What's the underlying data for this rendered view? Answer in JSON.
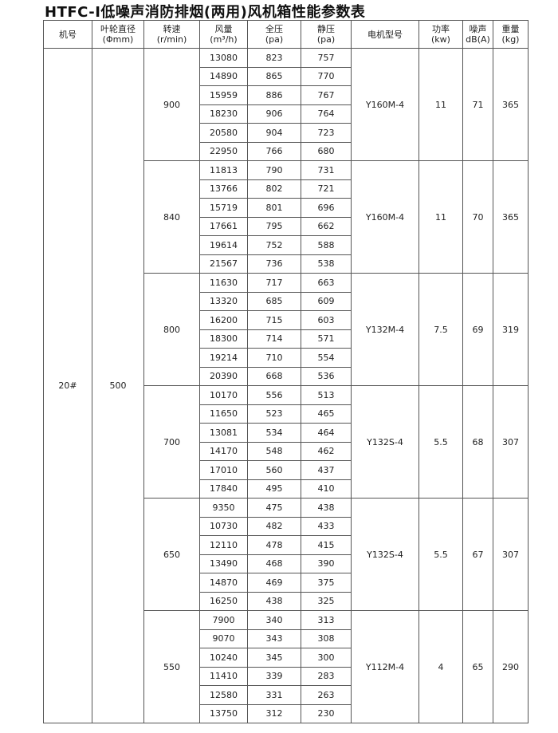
{
  "title": "HTFC-Ⅰ低噪声消防排烟(两用)风机箱性能参数表",
  "headers": [
    [
      "机号",
      ""
    ],
    [
      "叶轮直径",
      "(Φmm)"
    ],
    [
      "转速",
      "(r/min)"
    ],
    [
      "风量",
      "(m³/h)"
    ],
    [
      "全压",
      "(pa)"
    ],
    [
      "静压",
      "(pa)"
    ],
    [
      "电机型号",
      ""
    ],
    [
      "功率",
      "(kw)"
    ],
    [
      "噪声",
      "dB(A)"
    ],
    [
      "重量",
      "(kg)"
    ]
  ],
  "machine_no": "20#",
  "impeller_diameter": "500",
  "groups": [
    {
      "speed": "900",
      "motor": "Y160M-4",
      "power": "11",
      "noise": "71",
      "weight": "365",
      "rows": [
        [
          "13080",
          "823",
          "757"
        ],
        [
          "14890",
          "865",
          "770"
        ],
        [
          "15959",
          "886",
          "767"
        ],
        [
          "18230",
          "906",
          "764"
        ],
        [
          "20580",
          "904",
          "723"
        ],
        [
          "22950",
          "766",
          "680"
        ]
      ]
    },
    {
      "speed": "840",
      "motor": "Y160M-4",
      "power": "11",
      "noise": "70",
      "weight": "365",
      "rows": [
        [
          "11813",
          "790",
          "731"
        ],
        [
          "13766",
          "802",
          "721"
        ],
        [
          "15719",
          "801",
          "696"
        ],
        [
          "17661",
          "795",
          "662"
        ],
        [
          "19614",
          "752",
          "588"
        ],
        [
          "21567",
          "736",
          "538"
        ]
      ]
    },
    {
      "speed": "800",
      "motor": "Y132M-4",
      "power": "7.5",
      "noise": "69",
      "weight": "319",
      "rows": [
        [
          "11630",
          "717",
          "663"
        ],
        [
          "13320",
          "685",
          "609"
        ],
        [
          "16200",
          "715",
          "603"
        ],
        [
          "18300",
          "714",
          "571"
        ],
        [
          "19214",
          "710",
          "554"
        ],
        [
          "20390",
          "668",
          "536"
        ]
      ]
    },
    {
      "speed": "700",
      "motor": "Y132S-4",
      "power": "5.5",
      "noise": "68",
      "weight": "307",
      "rows": [
        [
          "10170",
          "556",
          "513"
        ],
        [
          "11650",
          "523",
          "465"
        ],
        [
          "13081",
          "534",
          "464"
        ],
        [
          "14170",
          "548",
          "462"
        ],
        [
          "17010",
          "560",
          "437"
        ],
        [
          "17840",
          "495",
          "410"
        ]
      ]
    },
    {
      "speed": "650",
      "motor": "Y132S-4",
      "power": "5.5",
      "noise": "67",
      "weight": "307",
      "rows": [
        [
          "9350",
          "475",
          "438"
        ],
        [
          "10730",
          "482",
          "433"
        ],
        [
          "12110",
          "478",
          "415"
        ],
        [
          "13490",
          "468",
          "390"
        ],
        [
          "14870",
          "469",
          "375"
        ],
        [
          "16250",
          "438",
          "325"
        ]
      ]
    },
    {
      "speed": "550",
      "motor": "Y112M-4",
      "power": "4",
      "noise": "65",
      "weight": "290",
      "rows": [
        [
          "7900",
          "340",
          "313"
        ],
        [
          "9070",
          "343",
          "308"
        ],
        [
          "10240",
          "345",
          "300"
        ],
        [
          "11410",
          "339",
          "283"
        ],
        [
          "12580",
          "331",
          "263"
        ],
        [
          "13750",
          "312",
          "230"
        ]
      ]
    }
  ]
}
